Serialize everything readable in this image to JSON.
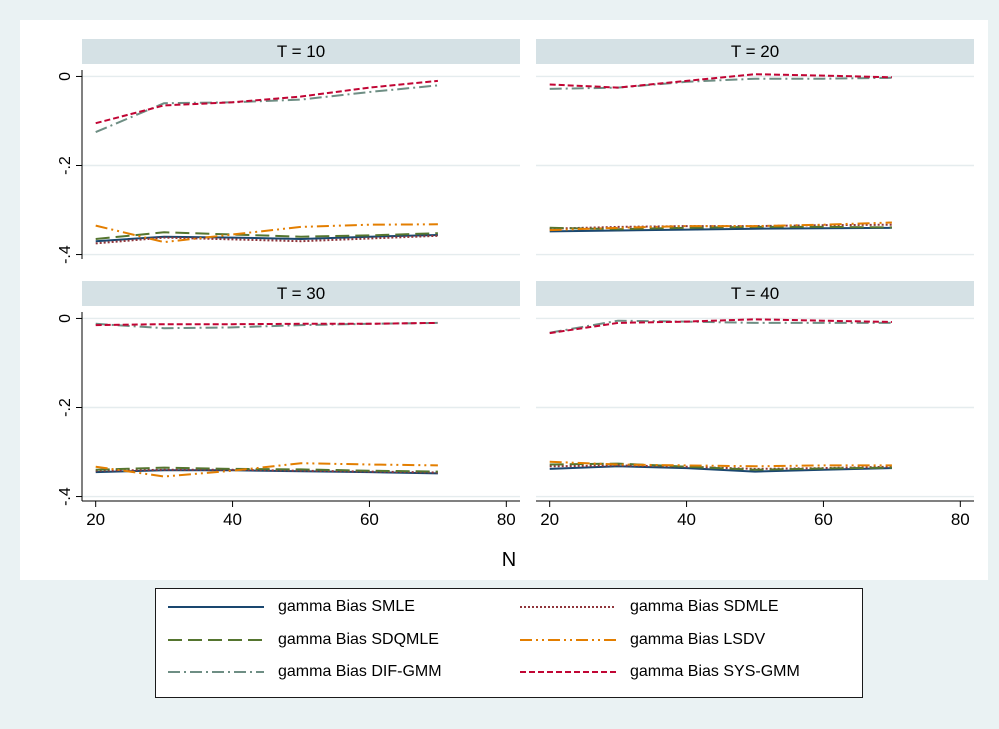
{
  "chart_data": {
    "type": "line",
    "xlabel": "N",
    "ylabel": "",
    "xlim": [
      18,
      82
    ],
    "ylim": [
      -0.41,
      0.01
    ],
    "xticks": [
      20,
      40,
      60,
      80
    ],
    "yticks": [
      0,
      -0.2,
      -0.4
    ],
    "ytick_labels": [
      "0",
      "-.2",
      "-.4"
    ],
    "x": [
      20,
      30,
      40,
      50,
      60,
      70
    ],
    "panels": [
      {
        "title": "T = 10",
        "series": [
          {
            "name": "gamma Bias SMLE",
            "values": [
              -0.37,
              -0.36,
              -0.362,
              -0.365,
              -0.36,
              -0.356
            ]
          },
          {
            "name": "gamma Bias SDMLE",
            "values": [
              -0.375,
              -0.362,
              -0.366,
              -0.37,
              -0.364,
              -0.358
            ]
          },
          {
            "name": "gamma Bias SDQMLE",
            "values": [
              -0.365,
              -0.35,
              -0.355,
              -0.36,
              -0.357,
              -0.352
            ]
          },
          {
            "name": "gamma Bias LSDV",
            "values": [
              -0.335,
              -0.372,
              -0.355,
              -0.338,
              -0.333,
              -0.332
            ]
          },
          {
            "name": "gamma Bias DIF-GMM",
            "values": [
              -0.125,
              -0.06,
              -0.058,
              -0.052,
              -0.035,
              -0.02
            ]
          },
          {
            "name": "gamma Bias SYS-GMM",
            "values": [
              -0.105,
              -0.065,
              -0.058,
              -0.045,
              -0.025,
              -0.01
            ]
          }
        ]
      },
      {
        "title": "T = 20",
        "series": [
          {
            "name": "gamma Bias SMLE",
            "values": [
              -0.348,
              -0.346,
              -0.344,
              -0.342,
              -0.341,
              -0.34
            ]
          },
          {
            "name": "gamma Bias SDMLE",
            "values": [
              -0.342,
              -0.338,
              -0.336,
              -0.336,
              -0.334,
              -0.333
            ]
          },
          {
            "name": "gamma Bias SDQMLE",
            "values": [
              -0.34,
              -0.343,
              -0.34,
              -0.338,
              -0.338,
              -0.339
            ]
          },
          {
            "name": "gamma Bias LSDV",
            "values": [
              -0.345,
              -0.34,
              -0.336,
              -0.336,
              -0.333,
              -0.328
            ]
          },
          {
            "name": "gamma Bias DIF-GMM",
            "values": [
              -0.028,
              -0.025,
              -0.012,
              -0.005,
              -0.005,
              -0.003
            ]
          },
          {
            "name": "gamma Bias SYS-GMM",
            "values": [
              -0.018,
              -0.025,
              -0.01,
              0.005,
              0.002,
              -0.002
            ]
          }
        ]
      },
      {
        "title": "T = 30",
        "series": [
          {
            "name": "gamma Bias SMLE",
            "values": [
              -0.345,
              -0.341,
              -0.341,
              -0.343,
              -0.345,
              -0.348
            ]
          },
          {
            "name": "gamma Bias SDMLE",
            "values": [
              -0.342,
              -0.34,
              -0.34,
              -0.342,
              -0.344,
              -0.346
            ]
          },
          {
            "name": "gamma Bias SDQMLE",
            "values": [
              -0.34,
              -0.335,
              -0.338,
              -0.339,
              -0.342,
              -0.344
            ]
          },
          {
            "name": "gamma Bias LSDV",
            "values": [
              -0.333,
              -0.355,
              -0.342,
              -0.325,
              -0.328,
              -0.33
            ]
          },
          {
            "name": "gamma Bias DIF-GMM",
            "values": [
              -0.012,
              -0.022,
              -0.02,
              -0.015,
              -0.012,
              -0.01
            ]
          },
          {
            "name": "gamma Bias SYS-GMM",
            "values": [
              -0.015,
              -0.013,
              -0.013,
              -0.012,
              -0.012,
              -0.01
            ]
          }
        ]
      },
      {
        "title": "T = 40",
        "series": [
          {
            "name": "gamma Bias SMLE",
            "values": [
              -0.338,
              -0.332,
              -0.336,
              -0.344,
              -0.34,
              -0.336
            ]
          },
          {
            "name": "gamma Bias SDMLE",
            "values": [
              -0.332,
              -0.33,
              -0.333,
              -0.338,
              -0.336,
              -0.333
            ]
          },
          {
            "name": "gamma Bias SDQMLE",
            "values": [
              -0.328,
              -0.326,
              -0.333,
              -0.34,
              -0.337,
              -0.335
            ]
          },
          {
            "name": "gamma Bias LSDV",
            "values": [
              -0.322,
              -0.328,
              -0.33,
              -0.332,
              -0.33,
              -0.33
            ]
          },
          {
            "name": "gamma Bias DIF-GMM",
            "values": [
              -0.032,
              -0.005,
              -0.007,
              -0.01,
              -0.01,
              -0.01
            ]
          },
          {
            "name": "gamma Bias SYS-GMM",
            "values": [
              -0.033,
              -0.01,
              -0.007,
              -0.002,
              -0.005,
              -0.008
            ]
          }
        ]
      }
    ],
    "grid": true,
    "legend_position": "bottom",
    "legend": [
      {
        "name": "gamma Bias SMLE",
        "color": "#1a476f",
        "dash": "solid"
      },
      {
        "name": "gamma Bias SDMLE",
        "color": "#90353b",
        "dash": "dotted"
      },
      {
        "name": "gamma Bias SDQMLE",
        "color": "#55752f",
        "dash": "long-dash"
      },
      {
        "name": "gamma Bias LSDV",
        "color": "#e37e00",
        "dash": "long-dash-dot-dot"
      },
      {
        "name": "gamma Bias DIF-GMM",
        "color": "#6e8e84",
        "dash": "long-dash-dot"
      },
      {
        "name": "gamma Bias SYS-GMM",
        "color": "#c10534",
        "dash": "short-dash"
      }
    ]
  }
}
